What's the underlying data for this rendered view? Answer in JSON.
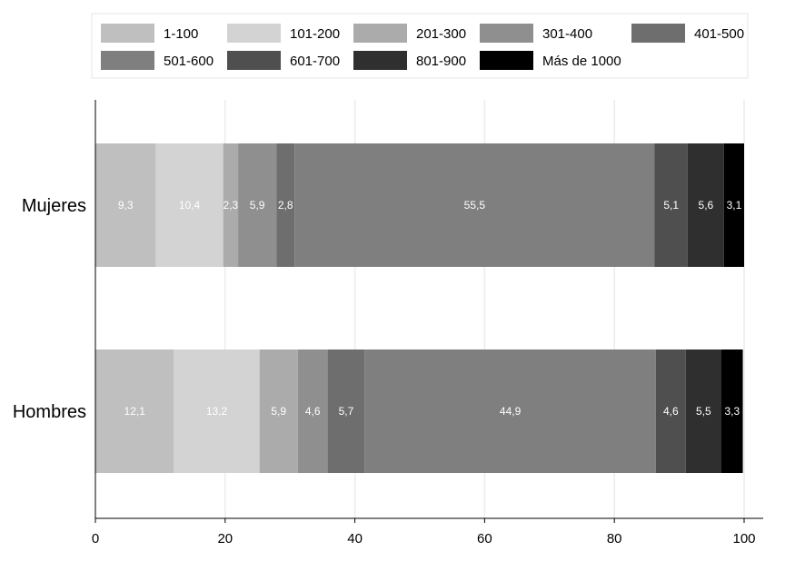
{
  "chart_data": {
    "type": "bar",
    "orientation": "horizontal",
    "stacked": true,
    "categories": [
      "Mujeres",
      "Hombres"
    ],
    "series": [
      {
        "name": "1-100",
        "values": [
          9.3,
          12.1
        ],
        "labels": [
          "9,3",
          "12,1"
        ],
        "color": "#bfbfbf"
      },
      {
        "name": "101-200",
        "values": [
          10.4,
          13.2
        ],
        "labels": [
          "10,4",
          "13,2"
        ],
        "color": "#d3d3d3"
      },
      {
        "name": "201-300",
        "values": [
          2.3,
          5.9
        ],
        "labels": [
          "2,3",
          "5,9"
        ],
        "color": "#ababab"
      },
      {
        "name": "301-400",
        "values": [
          5.9,
          4.6
        ],
        "labels": [
          "5,9",
          "4,6"
        ],
        "color": "#8f8f8f"
      },
      {
        "name": "401-500",
        "values": [
          2.8,
          5.7
        ],
        "labels": [
          "2,8",
          "5,7"
        ],
        "color": "#6e6e6e"
      },
      {
        "name": "501-600",
        "values": [
          55.5,
          44.9
        ],
        "labels": [
          "55,5",
          "44,9"
        ],
        "color": "#7f7f7f"
      },
      {
        "name": "601-700",
        "values": [
          5.1,
          4.6
        ],
        "labels": [
          "5,1",
          "4,6"
        ],
        "color": "#4f4f4f"
      },
      {
        "name": "801-900",
        "values": [
          5.6,
          5.5
        ],
        "labels": [
          "5,6",
          "5,5"
        ],
        "color": "#2f2f2f"
      },
      {
        "name": "Más de 1000",
        "values": [
          3.1,
          3.3
        ],
        "labels": [
          "3,1",
          "3,3"
        ],
        "color": "#000000"
      }
    ],
    "xlim": [
      0,
      100
    ],
    "xticks": [
      0,
      20,
      40,
      60,
      80,
      100
    ],
    "xtick_labels": [
      "0",
      "20",
      "40",
      "60",
      "80",
      "100"
    ],
    "grid": "vertical",
    "legend_position": "top"
  }
}
